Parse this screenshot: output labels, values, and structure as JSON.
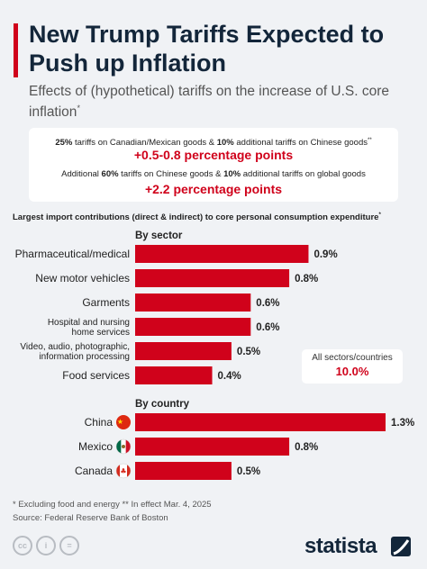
{
  "title": "New Trump Tariffs Expected to Push up Inflation",
  "subtitle": "Effects of (hypothetical) tariffs on the increase of U.S. core inflation",
  "subtitle_mark": "*",
  "scenarios": {
    "s1_p1": "25%",
    "s1_p2": " tariffs on Canadian/Mexican goods & ",
    "s1_p3": "10%",
    "s1_p4": " additional tariffs on Chinese goods",
    "s1_mark": "**",
    "s1_value": "+0.5-0.8 percentage points",
    "s2_p1": "Additional ",
    "s2_p2": "60%",
    "s2_p3": " tariffs on Chinese goods & ",
    "s2_p4": "10%",
    "s2_p5": " additional tariffs on global goods",
    "s2_value": "+2.2 percentage points"
  },
  "chart_heading": "Largest import contributions (direct & indirect) to core personal consumption expenditure",
  "chart_heading_mark": "*",
  "total": {
    "label": "All sectors/countries",
    "value": "10.0%"
  },
  "colors": {
    "bar": "#d0021b",
    "accent": "#d0021b",
    "title": "#13263a",
    "background": "#f0f2f5"
  },
  "chart_data": [
    {
      "type": "bar",
      "orientation": "horizontal",
      "title": "By sector",
      "categories": [
        "Pharmaceutical/medical",
        "New motor vehicles",
        "Garments",
        "Hospital and nursing home services",
        "Video, audio, photographic, information processing",
        "Food services"
      ],
      "category_lines": [
        [
          "Pharmaceutical/medical"
        ],
        [
          "New motor vehicles"
        ],
        [
          "Garments"
        ],
        [
          "Hospital and nursing",
          "home services"
        ],
        [
          "Video, audio, photographic,",
          "information processing"
        ],
        [
          "Food services"
        ]
      ],
      "values": [
        0.9,
        0.8,
        0.6,
        0.6,
        0.5,
        0.4
      ],
      "value_labels": [
        "0.9%",
        "0.8%",
        "0.6%",
        "0.6%",
        "0.5%",
        "0.4%"
      ],
      "unit": "%",
      "xlim": [
        0,
        1.3
      ]
    },
    {
      "type": "bar",
      "orientation": "horizontal",
      "title": "By country",
      "categories": [
        "China",
        "Mexico",
        "Canada"
      ],
      "flags": [
        "china-flag-icon",
        "mexico-flag-icon",
        "canada-flag-icon"
      ],
      "values": [
        1.3,
        0.8,
        0.5
      ],
      "value_labels": [
        "1.3%",
        "0.8%",
        "0.5%"
      ],
      "unit": "%",
      "xlim": [
        0,
        1.3
      ]
    }
  ],
  "footnote": {
    "line1": "* Excluding food and energy   ** In effect Mar. 4, 2025",
    "line2": "Source: Federal Reserve Bank of Boston"
  },
  "license_icons": {
    "cc": "cc",
    "by": "i",
    "nd": "="
  },
  "brand": "statista"
}
